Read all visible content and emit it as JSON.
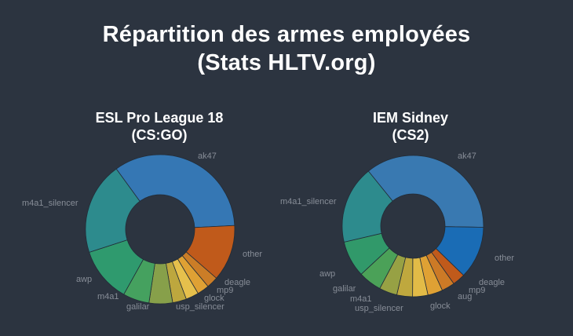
{
  "header": {
    "title_line1": "Répartition des armes employées",
    "title_line2": "(Stats HLTV.org)"
  },
  "colors": {
    "background": "#2c3440",
    "title_text": "#ffffff",
    "slice_label_text": "#878d97",
    "slice_separator": "#222c37"
  },
  "chart_data": [
    {
      "type": "pie",
      "subtype": "donut",
      "title": "ESL Pro League 18 (CS:GO)",
      "title_line1": "ESL Pro League 18",
      "title_line2": "(CS:GO)",
      "unit": "percent share (estimated from arc angles)",
      "start_angle_deg": -36,
      "legend_position": "labels-outside",
      "slices": [
        {
          "label": "ak47",
          "value": 34.2,
          "color": "#3577b4"
        },
        {
          "label": "other",
          "value": 12.2,
          "color": "#c05a1b"
        },
        {
          "label": "deagle",
          "value": 2.5,
          "color": "#cb7d27"
        },
        {
          "label": "mp9",
          "value": 2.6,
          "color": "#dfa134"
        },
        {
          "label": "glock",
          "value": 2.8,
          "color": "#e6c04c"
        },
        {
          "label": "usp_silencer",
          "value": 3.0,
          "color": "#bda73e"
        },
        {
          "label": "galilar",
          "value": 5.1,
          "color": "#87a04a"
        },
        {
          "label": "m4a1",
          "value": 5.7,
          "color": "#45a15f"
        },
        {
          "label": "awp",
          "value": 11.9,
          "color": "#2f9a6e"
        },
        {
          "label": "m4a1_silencer",
          "value": 20.0,
          "color": "#2d8b8d"
        }
      ]
    },
    {
      "type": "pie",
      "subtype": "donut",
      "title": "IEM Sidney (CS2)",
      "title_line1": "IEM Sidney",
      "title_line2": "(CS2)",
      "unit": "percent share (estimated from arc angles)",
      "start_angle_deg": -39,
      "legend_position": "labels-outside",
      "slices": [
        {
          "label": "ak47",
          "value": 36.1,
          "color": "#3979b1"
        },
        {
          "label": "other",
          "value": 12.0,
          "color": "#1a6cb5"
        },
        {
          "label": "deagle",
          "value": 2.9,
          "color": "#c05a1b"
        },
        {
          "label": "mp9",
          "value": 3.0,
          "color": "#cc7a26"
        },
        {
          "label": "aug",
          "value": 3.4,
          "color": "#dfa134"
        },
        {
          "label": "glock",
          "value": 3.5,
          "color": "#e2bb47"
        },
        {
          "label": "usp_silencer",
          "value": 3.6,
          "color": "#bfa83e"
        },
        {
          "label": "m4a1",
          "value": 4.1,
          "color": "#97a144"
        },
        {
          "label": "galilar",
          "value": 5.3,
          "color": "#4ba158"
        },
        {
          "label": "awp",
          "value": 8.3,
          "color": "#31996a"
        },
        {
          "label": "m4a1_silencer",
          "value": 17.8,
          "color": "#2d8b8d"
        }
      ]
    }
  ]
}
